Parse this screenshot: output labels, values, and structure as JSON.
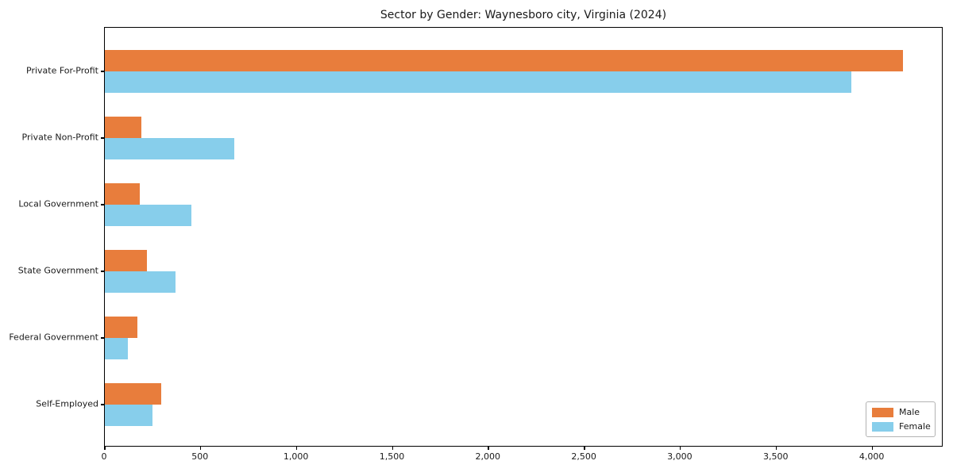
{
  "figure": {
    "title": "Sector by Gender: Waynesboro city, Virginia (2024)"
  },
  "chart_data": {
    "type": "bar",
    "orientation": "horizontal",
    "title": "Sector by Gender: Waynesboro city, Virginia (2024)",
    "categories": [
      "Private For-Profit",
      "Private Non-Profit",
      "Local Government",
      "State Government",
      "Federal Government",
      "Self-Employed"
    ],
    "series": [
      {
        "name": "Male",
        "color": "#e87d3c",
        "values": [
          4160,
          190,
          180,
          220,
          170,
          295
        ]
      },
      {
        "name": "Female",
        "color": "#87ceeb",
        "values": [
          3890,
          675,
          450,
          370,
          120,
          250
        ]
      }
    ],
    "xlabel": "",
    "ylabel": "",
    "xlim": [
      0,
      4370
    ],
    "xticks": [
      0,
      500,
      1000,
      1500,
      2000,
      2500,
      3000,
      3500,
      4000
    ],
    "xtick_labels": [
      "0",
      "500",
      "1,000",
      "1,500",
      "2,000",
      "2,500",
      "3,000",
      "3,500",
      "4,000"
    ],
    "grid": false,
    "legend": {
      "position": "lower right",
      "entries": [
        "Male",
        "Female"
      ]
    },
    "axis_color": "#000000",
    "text_color": "#1a1a1a",
    "background_color": "#ffffff"
  }
}
